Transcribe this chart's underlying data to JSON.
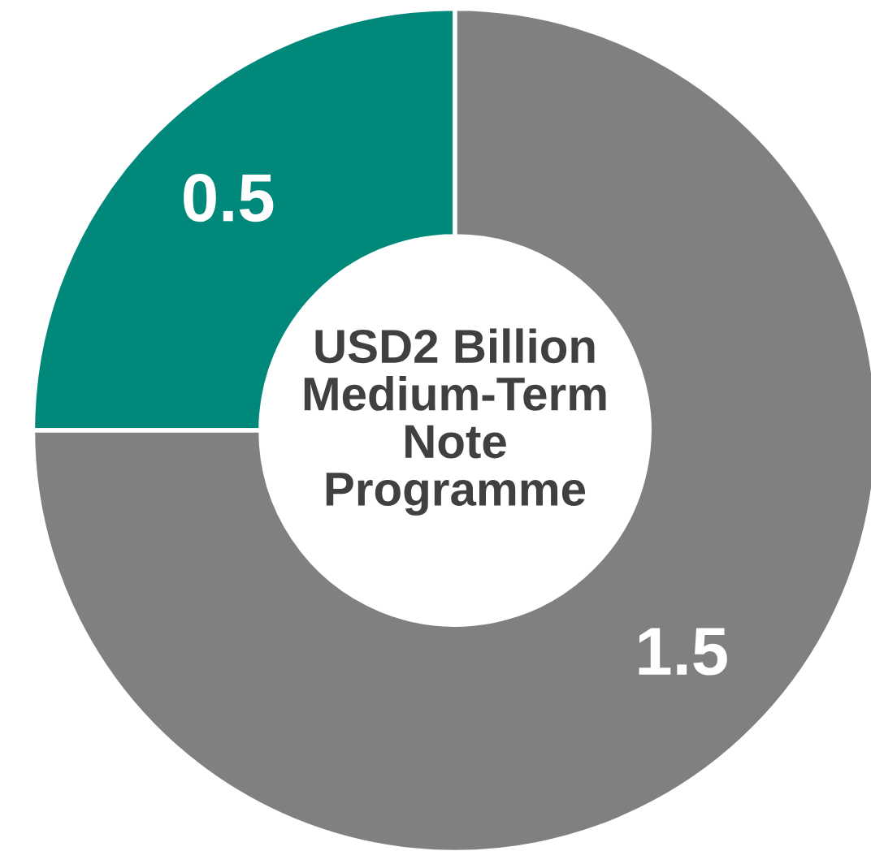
{
  "chart_data": {
    "type": "donut",
    "title": "USD2 Billion\nMedium-Term\nNote\nProgramme",
    "categories": [
      null,
      null
    ],
    "values": [
      0.5,
      1.5
    ],
    "colors": [
      "#00897b",
      "#808080"
    ],
    "data_labels": true
  }
}
